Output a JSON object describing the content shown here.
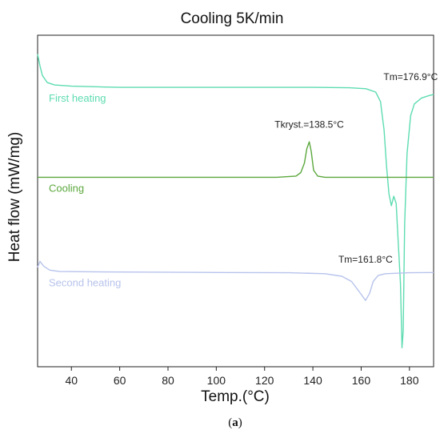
{
  "chart_data": {
    "type": "line",
    "title": "Cooling 5K/min",
    "xlabel": "Temp.(°C)",
    "ylabel": "Heat flow (mW/mg)",
    "xlim": [
      26,
      190
    ],
    "x_ticks": [
      40,
      60,
      80,
      100,
      120,
      140,
      160,
      180
    ],
    "y_ticks_shown": false,
    "grid": false,
    "caption": {
      "open": "(",
      "letter": "a",
      "close": ")"
    },
    "series": [
      {
        "name": "First heating",
        "color": "#5ddcb0",
        "offset": 8.8,
        "points": [
          [
            26,
            10.2
          ],
          [
            27,
            9.7
          ],
          [
            28,
            9.3
          ],
          [
            30,
            9.0
          ],
          [
            33,
            8.9
          ],
          [
            40,
            8.85
          ],
          [
            60,
            8.8
          ],
          [
            80,
            8.8
          ],
          [
            100,
            8.8
          ],
          [
            120,
            8.8
          ],
          [
            140,
            8.8
          ],
          [
            155,
            8.78
          ],
          [
            162,
            8.74
          ],
          [
            166,
            8.6
          ],
          [
            168,
            8.2
          ],
          [
            169.5,
            7.0
          ],
          [
            170.5,
            5.5
          ],
          [
            171.5,
            4.3
          ],
          [
            172.5,
            3.8
          ],
          [
            173.5,
            4.2
          ],
          [
            174.5,
            3.9
          ],
          [
            175.5,
            2.0
          ],
          [
            176.3,
            0.5
          ],
          [
            176.9,
            -2.2
          ],
          [
            177.4,
            -1.5
          ],
          [
            178,
            3.0
          ],
          [
            179,
            6.0
          ],
          [
            180.5,
            7.6
          ],
          [
            182,
            8.1
          ],
          [
            185,
            8.35
          ],
          [
            188,
            8.45
          ],
          [
            190,
            8.5
          ]
        ]
      },
      {
        "name": "Cooling",
        "color": "#5ca83e",
        "offset": 5.0,
        "points": [
          [
            26,
            5.0
          ],
          [
            60,
            5.0
          ],
          [
            100,
            5.0
          ],
          [
            125,
            5.0
          ],
          [
            133,
            5.05
          ],
          [
            135,
            5.2
          ],
          [
            136.5,
            5.6
          ],
          [
            137.5,
            6.2
          ],
          [
            138.5,
            6.5
          ],
          [
            139.3,
            6.1
          ],
          [
            140.3,
            5.3
          ],
          [
            142,
            5.05
          ],
          [
            145,
            5.0
          ],
          [
            160,
            5.0
          ],
          [
            175,
            5.0
          ],
          [
            190,
            5.0
          ]
        ]
      },
      {
        "name": "Second heating",
        "color": "#b7c3ec",
        "offset": 1.0,
        "points": [
          [
            26,
            1.2
          ],
          [
            27,
            1.45
          ],
          [
            28.5,
            1.25
          ],
          [
            31,
            1.08
          ],
          [
            35,
            1.02
          ],
          [
            60,
            1.0
          ],
          [
            100,
            0.98
          ],
          [
            130,
            0.97
          ],
          [
            145,
            0.93
          ],
          [
            152,
            0.82
          ],
          [
            156,
            0.6
          ],
          [
            159,
            0.2
          ],
          [
            161.8,
            -0.2
          ],
          [
            163.5,
            0.1
          ],
          [
            165,
            0.6
          ],
          [
            167,
            0.85
          ],
          [
            170,
            0.93
          ],
          [
            180,
            0.97
          ],
          [
            190,
            0.98
          ]
        ]
      }
    ],
    "annotations": [
      {
        "text": "Tm=176.9°C",
        "x": 180.5,
        "y": 9.1
      },
      {
        "text": "Tkryst.=138.5°C",
        "x": 138.5,
        "y": 7.1
      },
      {
        "text": "Tm=161.8°C",
        "x": 161.8,
        "y": 1.4
      }
    ],
    "legend_placement": "inline-left"
  }
}
